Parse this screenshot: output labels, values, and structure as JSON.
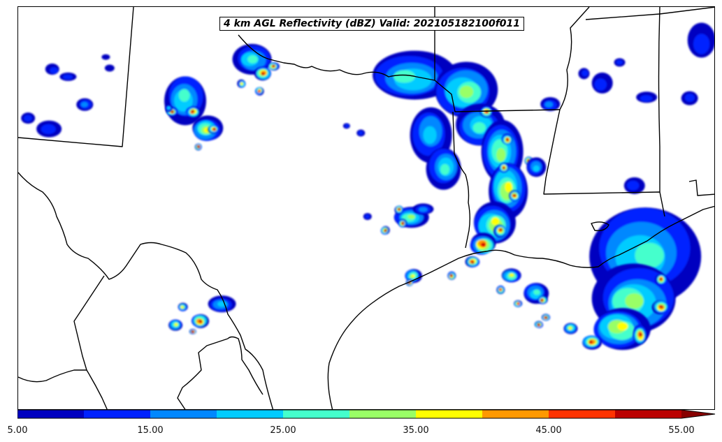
{
  "title": "4 km AGL Reflectivity (dBZ) Valid: 202105182100f011",
  "colorbar": {
    "colors": [
      "#0000c0",
      "#0022ff",
      "#0088ff",
      "#00ccff",
      "#44ffcc",
      "#99ff66",
      "#ffff00",
      "#ff9900",
      "#ff3300",
      "#bb0000"
    ],
    "extend_color": "#880000",
    "tick_labels": [
      "5.00",
      "15.00",
      "25.00",
      "35.00",
      "45.00",
      "55.00"
    ]
  }
}
